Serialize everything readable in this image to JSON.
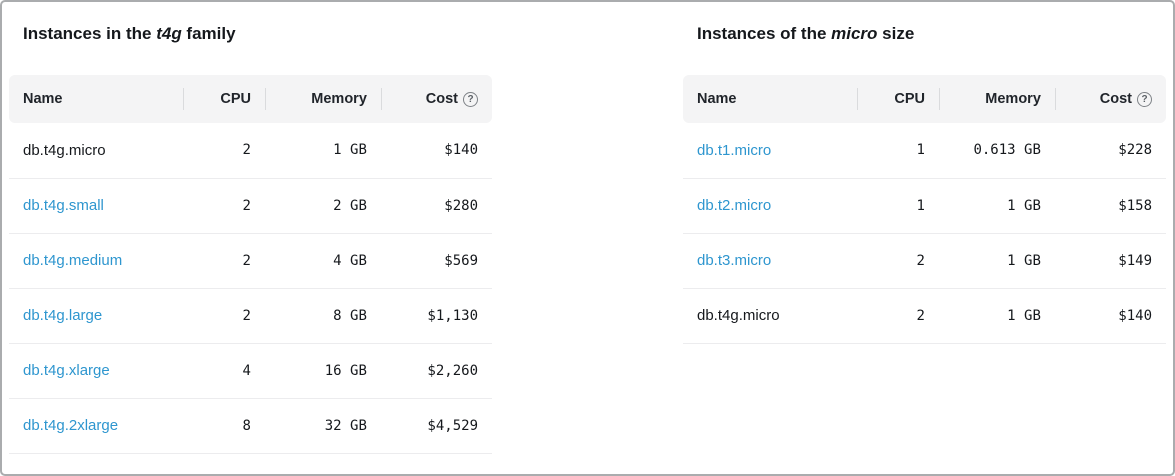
{
  "left_table": {
    "title": {
      "prefix": "Instances in the ",
      "emphasis": "t4g",
      "suffix": " family"
    },
    "headers": {
      "name": "Name",
      "cpu": "CPU",
      "memory": "Memory",
      "cost": "Cost"
    },
    "help_glyph": "?",
    "rows": [
      {
        "name": "db.t4g.micro",
        "cpu": "2",
        "memory": "1 GB",
        "cost": "$140",
        "link": false
      },
      {
        "name": "db.t4g.small",
        "cpu": "2",
        "memory": "2 GB",
        "cost": "$280",
        "link": true
      },
      {
        "name": "db.t4g.medium",
        "cpu": "2",
        "memory": "4 GB",
        "cost": "$569",
        "link": true
      },
      {
        "name": "db.t4g.large",
        "cpu": "2",
        "memory": "8 GB",
        "cost": "$1,130",
        "link": true
      },
      {
        "name": "db.t4g.xlarge",
        "cpu": "4",
        "memory": "16 GB",
        "cost": "$2,260",
        "link": true
      },
      {
        "name": "db.t4g.2xlarge",
        "cpu": "8",
        "memory": "32 GB",
        "cost": "$4,529",
        "link": true
      }
    ]
  },
  "right_table": {
    "title": {
      "prefix": "Instances of the ",
      "emphasis": "micro",
      "suffix": " size"
    },
    "headers": {
      "name": "Name",
      "cpu": "CPU",
      "memory": "Memory",
      "cost": "Cost"
    },
    "help_glyph": "?",
    "rows": [
      {
        "name": "db.t1.micro",
        "cpu": "1",
        "memory": "0.613 GB",
        "cost": "$228",
        "link": true
      },
      {
        "name": "db.t2.micro",
        "cpu": "1",
        "memory": "1 GB",
        "cost": "$158",
        "link": true
      },
      {
        "name": "db.t3.micro",
        "cpu": "2",
        "memory": "1 GB",
        "cost": "$149",
        "link": true
      },
      {
        "name": "db.t4g.micro",
        "cpu": "2",
        "memory": "1 GB",
        "cost": "$140",
        "link": false
      }
    ]
  },
  "colors": {
    "link": "#2e96cf",
    "header_bg": "#f4f4f5",
    "row_divider": "#ececee",
    "page_border": "#aaacae"
  }
}
